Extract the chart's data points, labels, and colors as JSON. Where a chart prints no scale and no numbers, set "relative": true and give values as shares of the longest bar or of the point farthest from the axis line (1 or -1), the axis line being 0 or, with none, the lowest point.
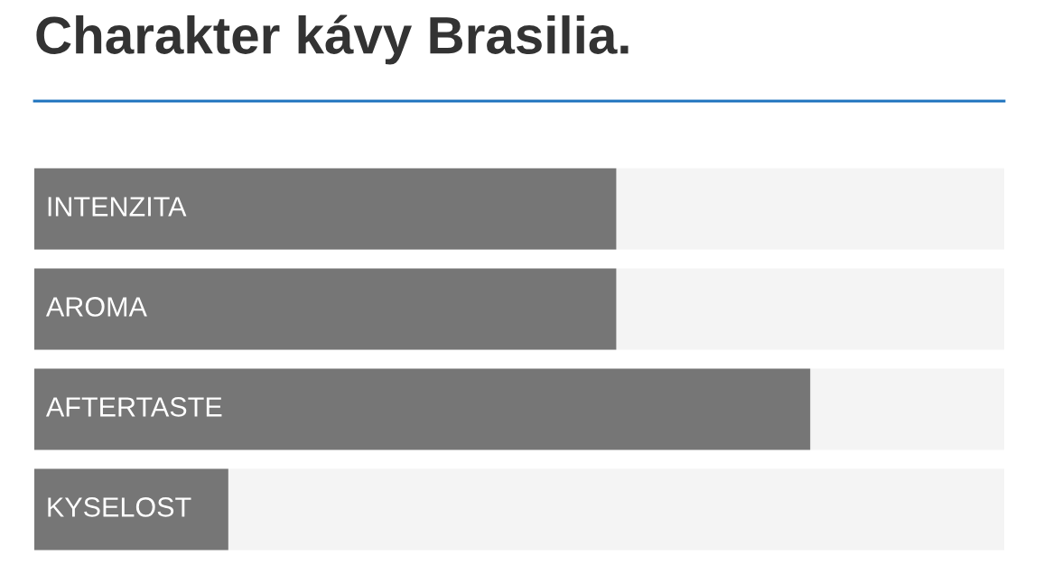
{
  "chart_data": {
    "type": "bar",
    "orientation": "horizontal",
    "relative": true,
    "title": "Charakter kávy Brasilia.",
    "categories": [
      "INTENZITA",
      "AROMA",
      "AFTERTASTE",
      "KYSELOST"
    ],
    "values": [
      0.75,
      0.75,
      1,
      0.25
    ],
    "color": "#767676"
  }
}
